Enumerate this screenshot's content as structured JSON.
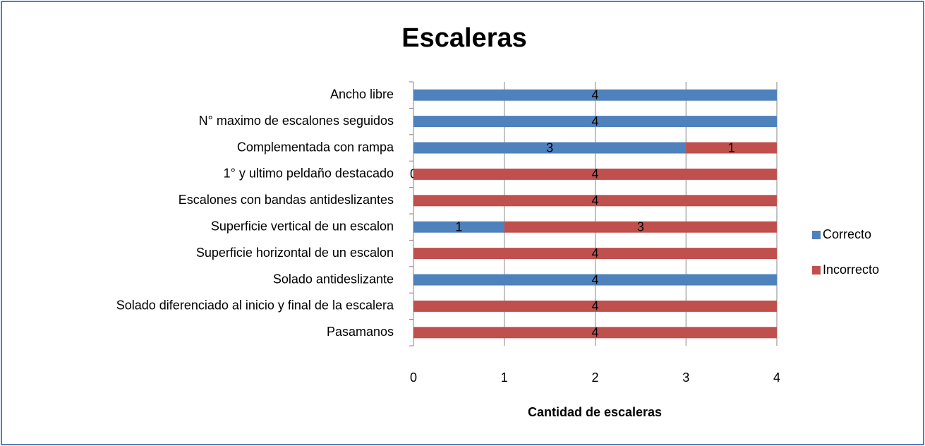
{
  "chart_data": {
    "type": "stacked_barh",
    "title": "Escaleras",
    "categories": [
      "Ancho libre",
      "N° maximo de escalones seguidos",
      "Complementada con rampa",
      "1° y ultimo peldaño destacado",
      "Escalones con bandas antideslizantes",
      "Superficie vertical de un escalon",
      "Superficie horizontal de un escalon",
      "Solado antideslizante",
      "Solado diferenciado al inicio y final de la escalera",
      "Pasamanos"
    ],
    "series": [
      {
        "name": "Correcto",
        "color": "#4f81bd",
        "values": [
          4,
          4,
          3,
          0,
          0,
          1,
          0,
          4,
          0,
          0
        ],
        "value_labels": [
          "4",
          "4",
          "3",
          "0",
          null,
          "1",
          null,
          "4",
          null,
          null
        ]
      },
      {
        "name": "Incorrecto",
        "color": "#c0504d",
        "values": [
          0,
          0,
          1,
          4,
          4,
          3,
          4,
          0,
          4,
          4
        ],
        "value_labels": [
          null,
          null,
          "1",
          "4",
          "4",
          "3",
          "4",
          null,
          "4",
          "4"
        ]
      }
    ],
    "xlabel": "Cantidad de escaleras",
    "xlim": [
      0,
      4
    ],
    "xticks": [
      0,
      1,
      2,
      3,
      4
    ],
    "grid": true,
    "legend": "right"
  }
}
